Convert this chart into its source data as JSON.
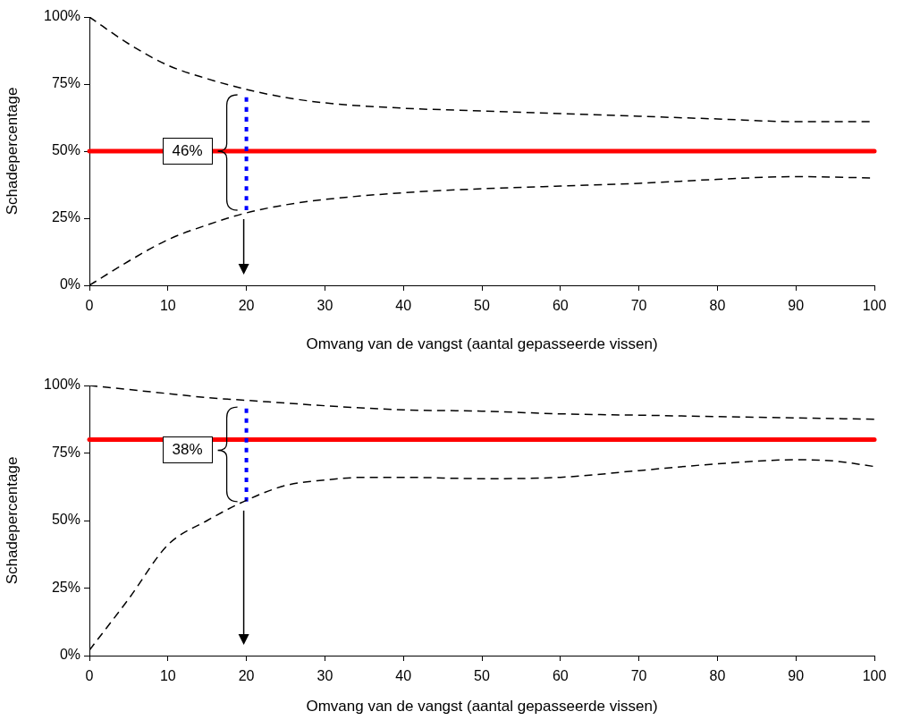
{
  "chart_data": [
    {
      "type": "line",
      "xlabel": "Omvang van de vangst (aantal gepasseerde vissen)",
      "ylabel": "Schadepercentage",
      "xlim": [
        0,
        100
      ],
      "xticks": [
        0,
        10,
        20,
        30,
        40,
        50,
        60,
        70,
        80,
        90,
        100
      ],
      "ylim": [
        0,
        100
      ],
      "yticks": [
        {
          "value": 0,
          "label": "0%"
        },
        {
          "value": 25,
          "label": "25%"
        },
        {
          "value": 50,
          "label": "50%"
        },
        {
          "value": 75,
          "label": "75%"
        },
        {
          "value": 100,
          "label": "100%"
        }
      ],
      "grid": false,
      "legend": false,
      "marker": "none",
      "series": [
        {
          "color": "#000000",
          "line_style": "dashed",
          "x": [
            0,
            5,
            10,
            15,
            20,
            25,
            30,
            40,
            50,
            60,
            70,
            80,
            90,
            100
          ],
          "values": [
            100,
            90,
            82,
            77,
            73,
            70,
            68,
            66,
            65,
            64,
            63,
            62,
            61,
            61
          ]
        },
        {
          "color": "#000000",
          "line_style": "dashed",
          "x": [
            0,
            5,
            10,
            15,
            20,
            25,
            30,
            40,
            50,
            60,
            70,
            80,
            90,
            100
          ],
          "values": [
            0,
            9,
            17,
            22.5,
            27,
            30,
            32,
            34.5,
            36,
            37,
            38,
            39.5,
            40.5,
            40
          ]
        },
        {
          "color": "#0000ff",
          "line_style": "dotted",
          "x": [
            20,
            20
          ],
          "values": [
            28,
            71
          ]
        }
      ],
      "ref_lines": [
        {
          "axis": "y",
          "value": 50,
          "color": "#ff0000"
        }
      ],
      "annotations": [
        {
          "text": "46%",
          "x": 20,
          "y": 50
        }
      ]
    },
    {
      "type": "line",
      "xlabel": "Omvang van de vangst (aantal gepasseerde vissen)",
      "ylabel": "Schadepercentage",
      "xlim": [
        0,
        100
      ],
      "xticks": [
        0,
        10,
        20,
        30,
        40,
        50,
        60,
        70,
        80,
        90,
        100
      ],
      "ylim": [
        0,
        100
      ],
      "yticks": [
        {
          "value": 0,
          "label": "0%"
        },
        {
          "value": 25,
          "label": "25%"
        },
        {
          "value": 50,
          "label": "50%"
        },
        {
          "value": 75,
          "label": "75%"
        },
        {
          "value": 100,
          "label": "100%"
        }
      ],
      "grid": false,
      "legend": false,
      "marker": "none",
      "series": [
        {
          "color": "#000000",
          "line_style": "dashed",
          "x": [
            0,
            5,
            10,
            15,
            20,
            25,
            30,
            40,
            50,
            60,
            70,
            80,
            90,
            100
          ],
          "values": [
            100,
            98.5,
            97,
            95.5,
            94.5,
            93.5,
            92.5,
            91,
            90.5,
            89.5,
            89,
            88.5,
            88,
            87.5
          ]
        },
        {
          "color": "#000000",
          "line_style": "dashed",
          "x": [
            0,
            5,
            10,
            15,
            20,
            25,
            30,
            35,
            40,
            50,
            60,
            70,
            80,
            90,
            95,
            100
          ],
          "values": [
            2,
            21,
            41,
            50,
            57.5,
            63,
            65,
            66,
            66,
            65.5,
            66,
            68.5,
            71,
            72.5,
            72,
            70
          ]
        },
        {
          "color": "#0000ff",
          "line_style": "dotted",
          "x": [
            20,
            20
          ],
          "values": [
            57,
            92
          ]
        }
      ],
      "ref_lines": [
        {
          "axis": "y",
          "value": 80,
          "color": "#ff0000"
        }
      ],
      "annotations": [
        {
          "text": "38%",
          "x": 20,
          "y": 76
        }
      ]
    }
  ]
}
